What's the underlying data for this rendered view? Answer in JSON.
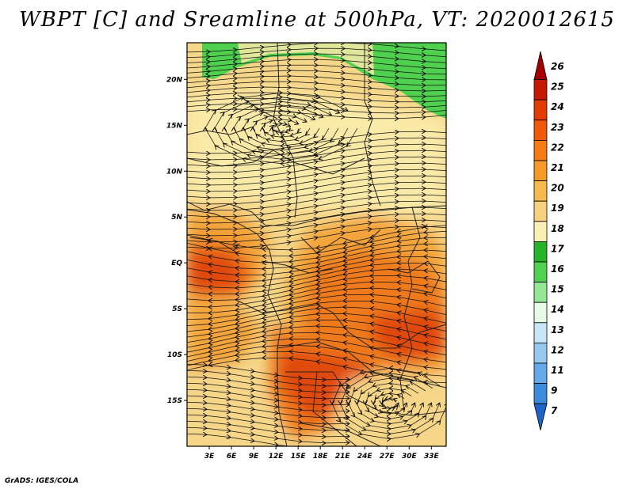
{
  "title": "WBPT [C] and Sreamline at 500hPa, VT: 2020012615",
  "footer": "GrADS: IGES/COLA",
  "map": {
    "lon_range": [
      0,
      35
    ],
    "lat_range": [
      -20,
      24
    ],
    "lon_ticks": [
      {
        "value": 3,
        "label": "3E"
      },
      {
        "value": 6,
        "label": "6E"
      },
      {
        "value": 9,
        "label": "9E"
      },
      {
        "value": 12,
        "label": "12E"
      },
      {
        "value": 15,
        "label": "15E"
      },
      {
        "value": 18,
        "label": "18E"
      },
      {
        "value": 21,
        "label": "21E"
      },
      {
        "value": 24,
        "label": "24E"
      },
      {
        "value": 27,
        "label": "27E"
      },
      {
        "value": 30,
        "label": "30E"
      },
      {
        "value": 33,
        "label": "33E"
      }
    ],
    "lat_ticks": [
      {
        "value": 20,
        "label": "20N"
      },
      {
        "value": 15,
        "label": "15N"
      },
      {
        "value": 10,
        "label": "10N"
      },
      {
        "value": 5,
        "label": "5N"
      },
      {
        "value": 0,
        "label": "EQ"
      },
      {
        "value": -5,
        "label": "5S"
      },
      {
        "value": -10,
        "label": "10S"
      },
      {
        "value": -15,
        "label": "15S"
      }
    ]
  },
  "colorbar": {
    "labels": [
      "26",
      "25",
      "24",
      "23",
      "22",
      "21",
      "20",
      "19",
      "18",
      "17",
      "16",
      "15",
      "14",
      "13",
      "12",
      "11",
      "9",
      "7"
    ],
    "colors": [
      "#a50000",
      "#c31a00",
      "#e23c00",
      "#ef5a0a",
      "#f57c14",
      "#f59a28",
      "#f5b950",
      "#f7d27e",
      "#faf0b4",
      "#28b428",
      "#50d250",
      "#96e696",
      "#e6fae6",
      "#c8e6fa",
      "#96c8f0",
      "#64aaeb",
      "#3c8cdc",
      "#1e64c8"
    ]
  },
  "colors": {
    "green": "#4fd04f",
    "light_yellow": "#faeaa8",
    "yellow": "#f6d78a",
    "orange": "#f3a43a",
    "dark_orange": "#ee7a1c",
    "red_orange": "#e04a10"
  }
}
